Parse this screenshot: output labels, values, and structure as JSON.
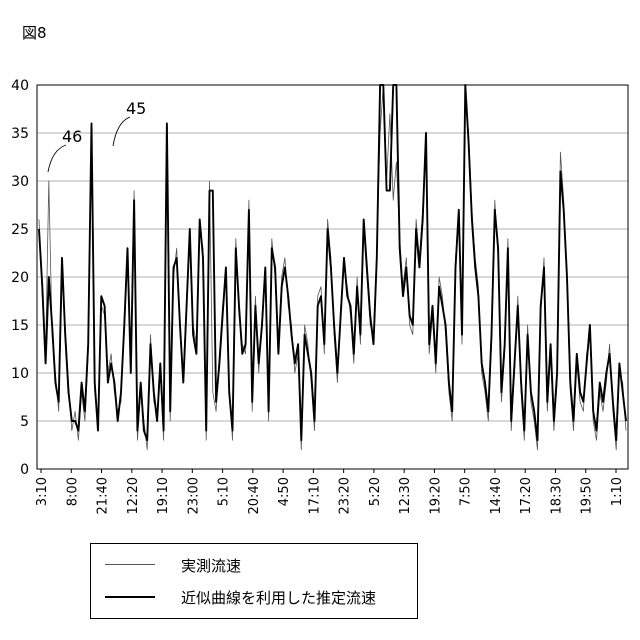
{
  "figure_label": "図8",
  "chart_data": {
    "type": "line",
    "ylim": [
      0,
      40
    ],
    "yticks": [
      0,
      5,
      10,
      15,
      20,
      25,
      30,
      35,
      40
    ],
    "grid": "horizontal",
    "x_ticks": [
      "3:10",
      "8:00",
      "21:40",
      "12:20",
      "19:10",
      "23:00",
      "5:10",
      "20:40",
      "4:50",
      "17:10",
      "23:20",
      "5:20",
      "12:30",
      "19:20",
      "7:50",
      "14:40",
      "17:20",
      "18:30",
      "19:50",
      "1:10"
    ],
    "series": [
      {
        "name": "実測流速",
        "color": "#555555",
        "stroke_width": 0.8,
        "values": [
          26,
          18,
          12,
          30,
          14,
          10,
          6,
          20,
          15,
          9,
          4,
          6,
          3,
          8,
          5,
          12,
          34,
          8,
          5,
          17,
          16,
          10,
          12,
          8,
          6,
          7,
          16,
          22,
          11,
          29,
          3,
          8,
          5,
          2,
          14,
          7,
          6,
          10,
          3,
          35,
          5,
          20,
          23,
          14,
          10,
          18,
          24,
          15,
          13,
          25,
          23,
          3,
          30,
          8,
          6,
          12,
          17,
          20,
          9,
          3,
          24,
          16,
          13,
          12,
          28,
          6,
          18,
          10,
          16,
          20,
          5,
          24,
          20,
          13,
          20,
          22,
          17,
          15,
          10,
          12,
          2,
          15,
          13,
          9,
          4,
          18,
          19,
          12,
          26,
          22,
          14,
          9,
          17,
          21,
          19,
          16,
          11,
          20,
          13,
          25,
          20,
          15,
          14,
          23,
          35,
          40,
          30,
          37,
          28,
          32,
          24,
          19,
          22,
          15,
          14,
          26,
          22,
          27,
          35,
          12,
          16,
          10,
          20,
          18,
          14,
          8,
          5,
          22,
          26,
          13,
          40,
          35,
          27,
          22,
          19,
          10,
          8,
          5,
          13,
          28,
          22,
          7,
          12,
          24,
          4,
          10,
          18,
          8,
          3,
          15,
          7,
          5,
          2,
          16,
          22,
          6,
          12,
          4,
          9,
          33,
          28,
          19,
          8,
          4,
          11,
          7,
          6,
          12,
          14,
          5,
          3,
          8,
          6,
          9,
          13,
          6,
          2,
          10,
          9,
          4
        ]
      },
      {
        "name": "近似曲線を利用した推定流速",
        "color": "#000000",
        "stroke_width": 1.9,
        "values": [
          25,
          19,
          11,
          20,
          15,
          9,
          7,
          22,
          14,
          8,
          5,
          5,
          4,
          9,
          6,
          13,
          36,
          9,
          4,
          18,
          17,
          9,
          11,
          9,
          5,
          8,
          15,
          23,
          10,
          28,
          4,
          9,
          4,
          3,
          13,
          8,
          5,
          11,
          4,
          36,
          6,
          21,
          22,
          15,
          9,
          17,
          25,
          14,
          12,
          26,
          22,
          4,
          29,
          29,
          7,
          11,
          16,
          21,
          8,
          4,
          23,
          17,
          12,
          13,
          27,
          7,
          17,
          11,
          15,
          21,
          6,
          23,
          21,
          12,
          19,
          21,
          18,
          14,
          11,
          13,
          3,
          14,
          12,
          10,
          5,
          17,
          18,
          13,
          25,
          21,
          15,
          10,
          16,
          22,
          18,
          17,
          12,
          19,
          14,
          26,
          21,
          16,
          13,
          22,
          40,
          40,
          29,
          29,
          40,
          40,
          23,
          18,
          21,
          16,
          15,
          25,
          21,
          26,
          35,
          13,
          17,
          11,
          19,
          17,
          15,
          9,
          6,
          21,
          27,
          14,
          40,
          34,
          26,
          21,
          18,
          11,
          9,
          6,
          14,
          27,
          23,
          8,
          13,
          23,
          5,
          11,
          17,
          9,
          4,
          14,
          8,
          6,
          3,
          17,
          21,
          7,
          13,
          5,
          10,
          31,
          27,
          20,
          9,
          5,
          12,
          8,
          7,
          11,
          15,
          6,
          4,
          9,
          7,
          10,
          12,
          7,
          3,
          11,
          8,
          5
        ]
      }
    ],
    "annotations": [
      "46",
      "45"
    ]
  },
  "legend": {
    "items": [
      {
        "label": "実測流速",
        "color": "#555555"
      },
      {
        "label": "近似曲線を利用した推定流速",
        "color": "#000000"
      }
    ]
  }
}
